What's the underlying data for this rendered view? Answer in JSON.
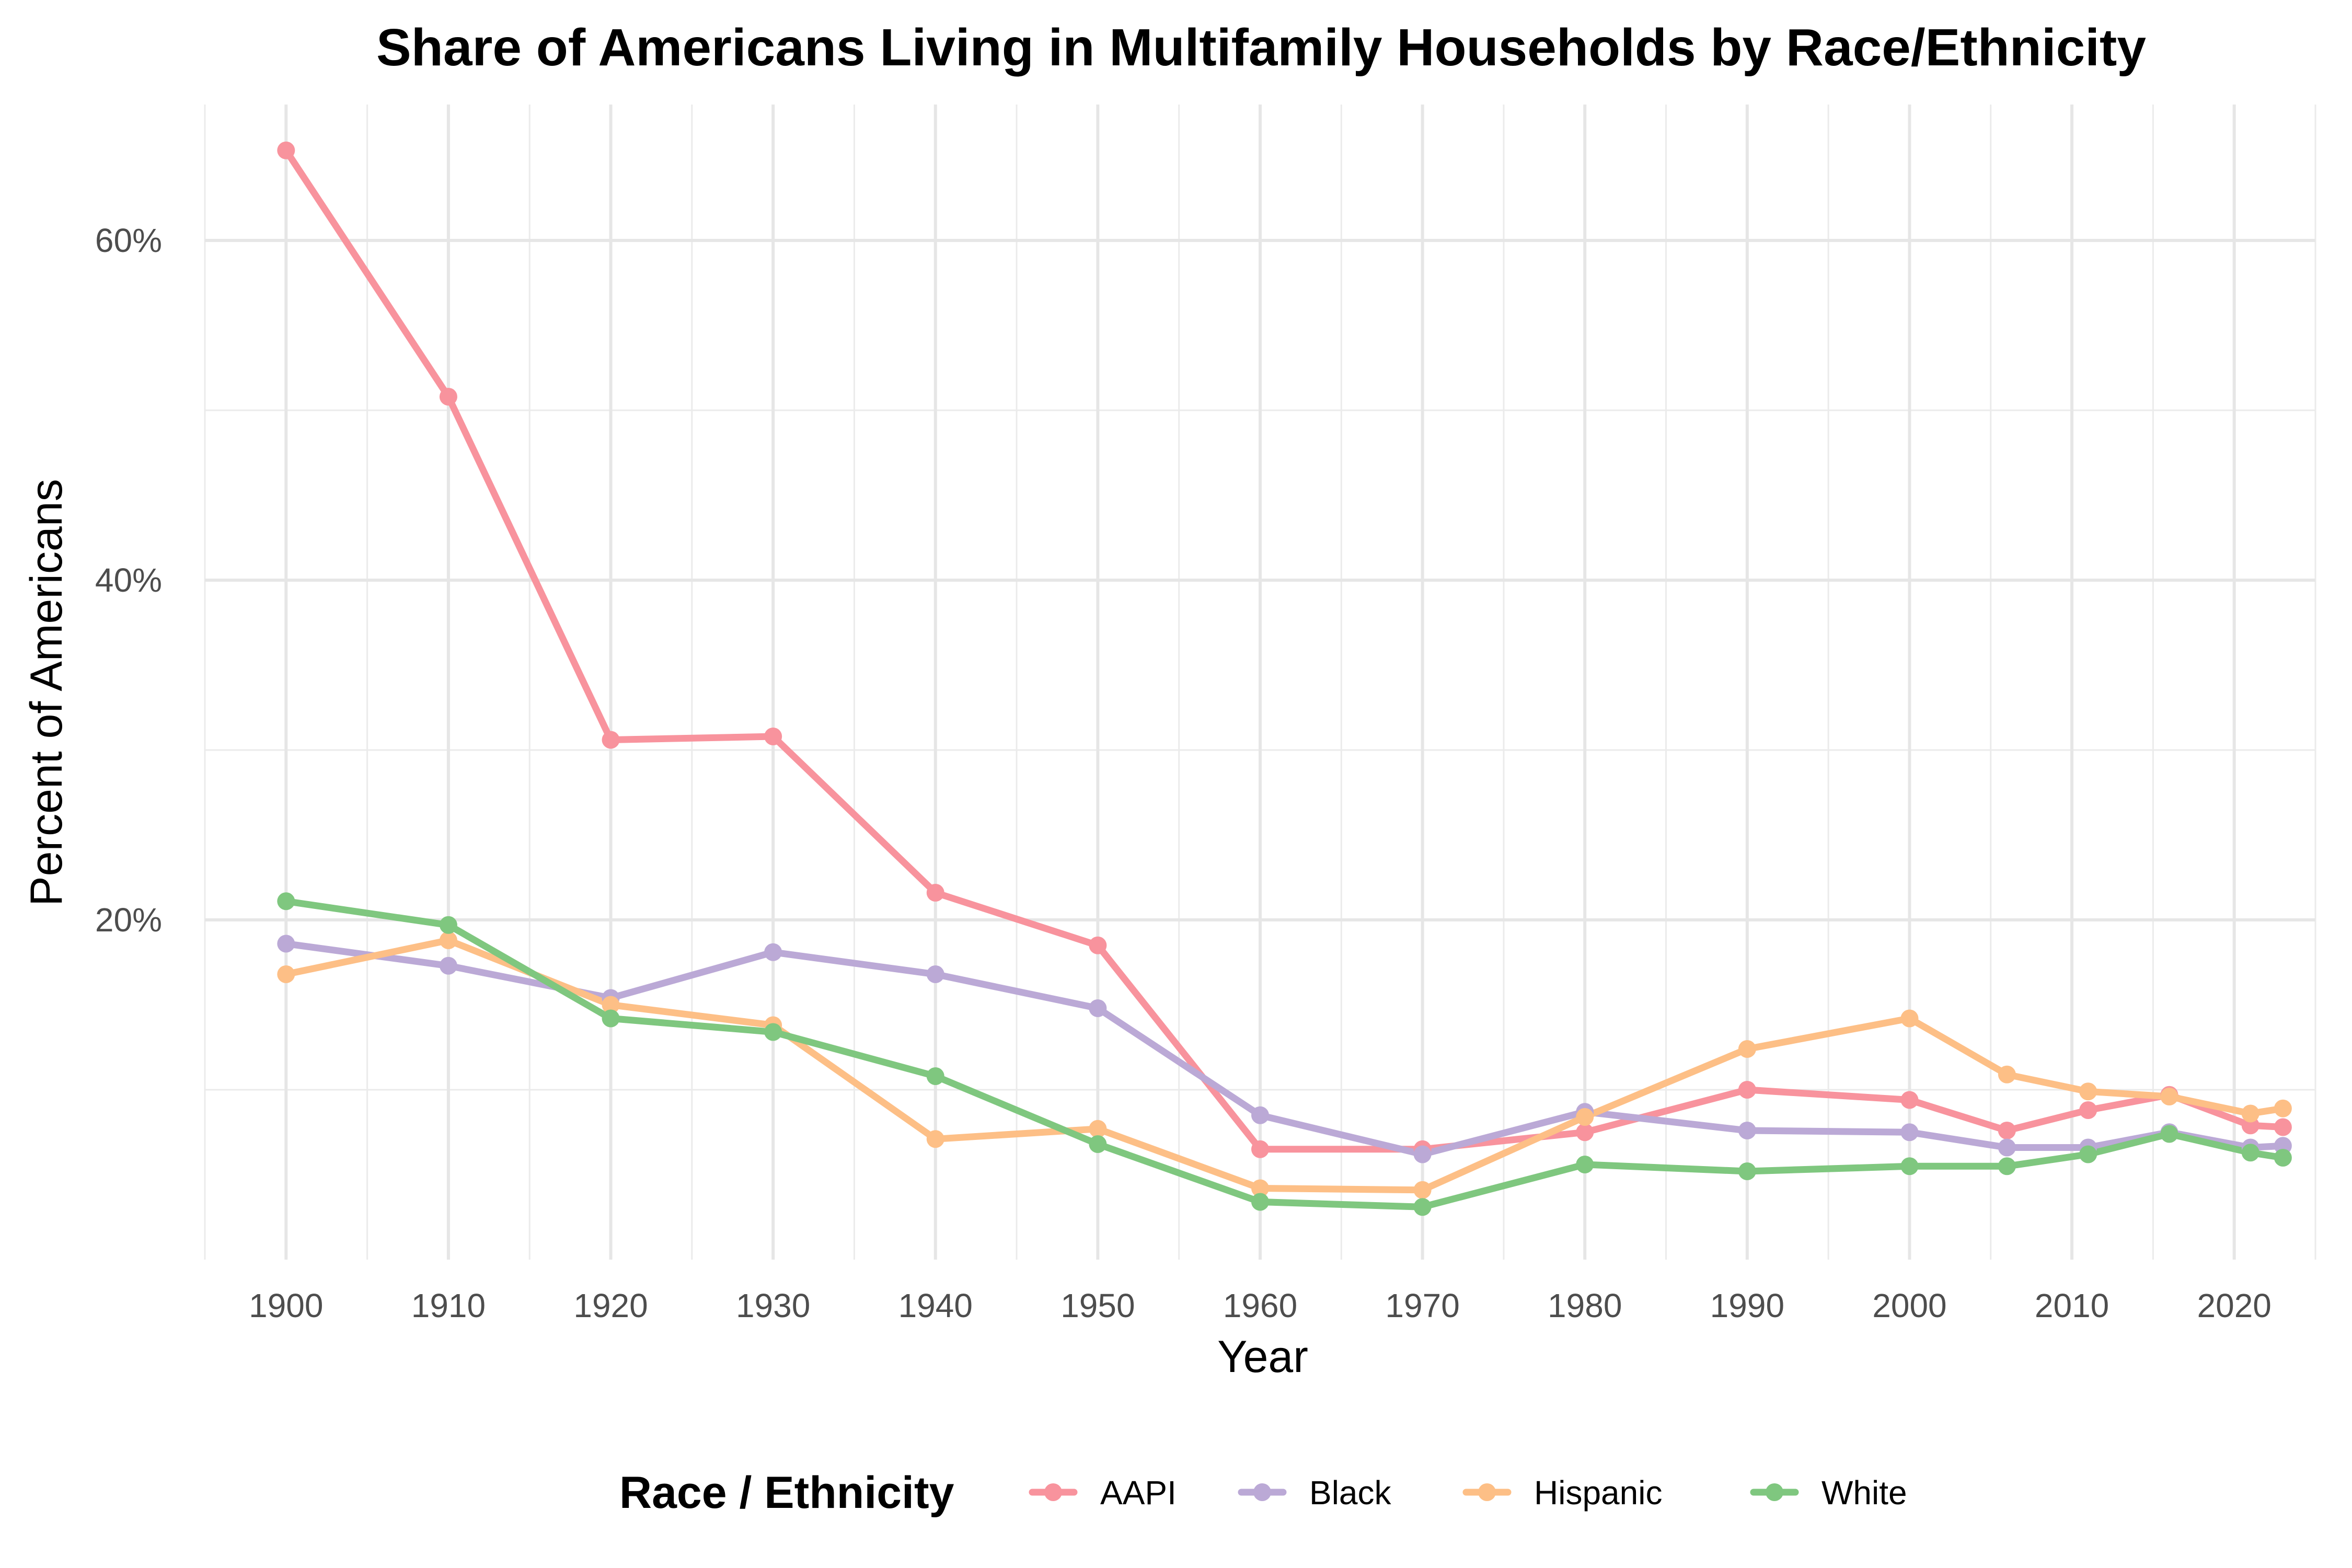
{
  "chart_data": {
    "type": "line",
    "title": "Share of Americans Living in Multifamily Households by Race/Ethnicity",
    "xlabel": "Year",
    "ylabel": "Percent of Americans",
    "xlim": [
      1895,
      2025
    ],
    "ylim": [
      0,
      68
    ],
    "x_ticks": [
      1900,
      1910,
      1920,
      1930,
      1940,
      1950,
      1960,
      1970,
      1980,
      1990,
      2000,
      2010,
      2020
    ],
    "x_tick_labels": [
      "1900",
      "1910",
      "1920",
      "1930",
      "1940",
      "1950",
      "1960",
      "1970",
      "1980",
      "1990",
      "2000",
      "2010",
      "2020"
    ],
    "y_ticks": [
      20,
      40,
      60
    ],
    "y_tick_labels": [
      "20%",
      "40%",
      "60%"
    ],
    "y_minor_ticks": [
      10,
      30,
      50
    ],
    "grid": true,
    "legend_title": "Race / Ethnicity",
    "legend_position": "bottom",
    "x": [
      1900,
      1910,
      1920,
      1930,
      1940,
      1950,
      1960,
      1970,
      1980,
      1990,
      2000,
      2006,
      2011,
      2016,
      2021,
      2023
    ],
    "series": [
      {
        "name": "AAPI",
        "color": "#F8939D",
        "values": [
          65.3,
          50.8,
          30.6,
          30.8,
          21.6,
          18.5,
          6.5,
          6.5,
          7.5,
          10.0,
          9.4,
          7.6,
          8.8,
          9.7,
          7.9,
          7.8
        ]
      },
      {
        "name": "Black",
        "color": "#BBA9D6",
        "values": [
          18.6,
          17.3,
          15.4,
          18.1,
          16.8,
          14.8,
          8.5,
          6.2,
          8.7,
          7.6,
          7.5,
          6.6,
          6.6,
          7.5,
          6.6,
          6.7
        ]
      },
      {
        "name": "Hispanic",
        "color": "#FDBF86",
        "values": [
          16.8,
          18.8,
          15.0,
          13.8,
          7.1,
          7.7,
          4.2,
          4.1,
          8.4,
          12.4,
          14.2,
          10.9,
          9.9,
          9.6,
          8.6,
          8.9
        ]
      },
      {
        "name": "White",
        "color": "#7FC77F",
        "values": [
          21.1,
          19.7,
          14.2,
          13.4,
          10.8,
          6.8,
          3.4,
          3.1,
          5.6,
          5.2,
          5.5,
          5.5,
          6.2,
          7.4,
          6.3,
          6.0
        ]
      }
    ]
  }
}
